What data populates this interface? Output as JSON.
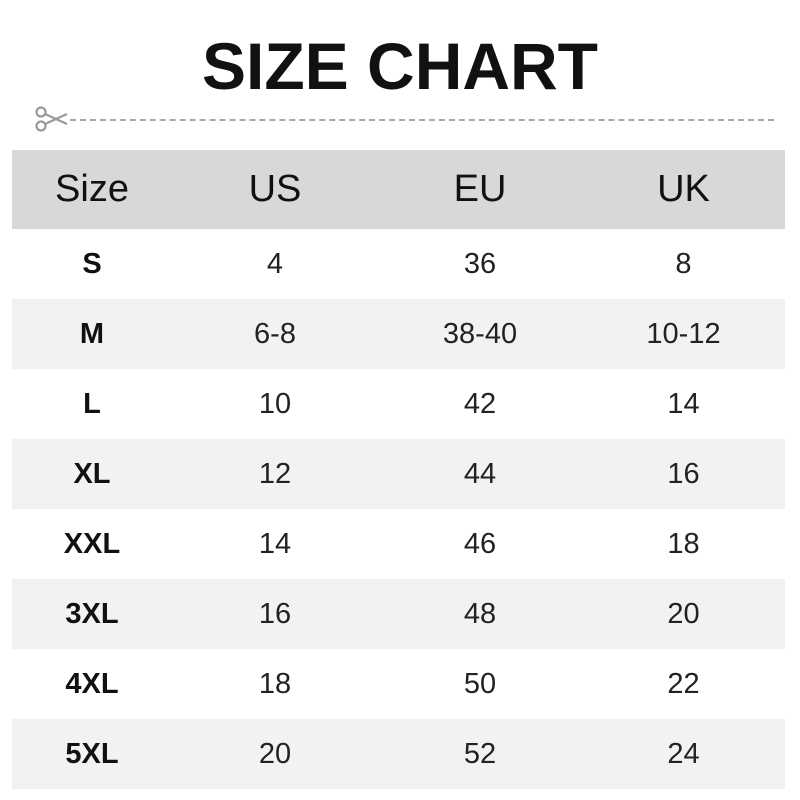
{
  "title": "SIZE CHART",
  "icons": {
    "cut": "scissors-icon"
  },
  "colors": {
    "header_bg": "#d8d8d8",
    "alt_row_bg": "#f2f2f2",
    "dash": "#a8a8a8"
  },
  "table": {
    "headers": [
      "Size",
      "US",
      "EU",
      "UK"
    ],
    "rows": [
      [
        "S",
        "4",
        "36",
        "8"
      ],
      [
        "M",
        "6-8",
        "38-40",
        "10-12"
      ],
      [
        "L",
        "10",
        "42",
        "14"
      ],
      [
        "XL",
        "12",
        "44",
        "16"
      ],
      [
        "XXL",
        "14",
        "46",
        "18"
      ],
      [
        "3XL",
        "16",
        "48",
        "20"
      ],
      [
        "4XL",
        "18",
        "50",
        "22"
      ],
      [
        "5XL",
        "20",
        "52",
        "24"
      ]
    ]
  }
}
